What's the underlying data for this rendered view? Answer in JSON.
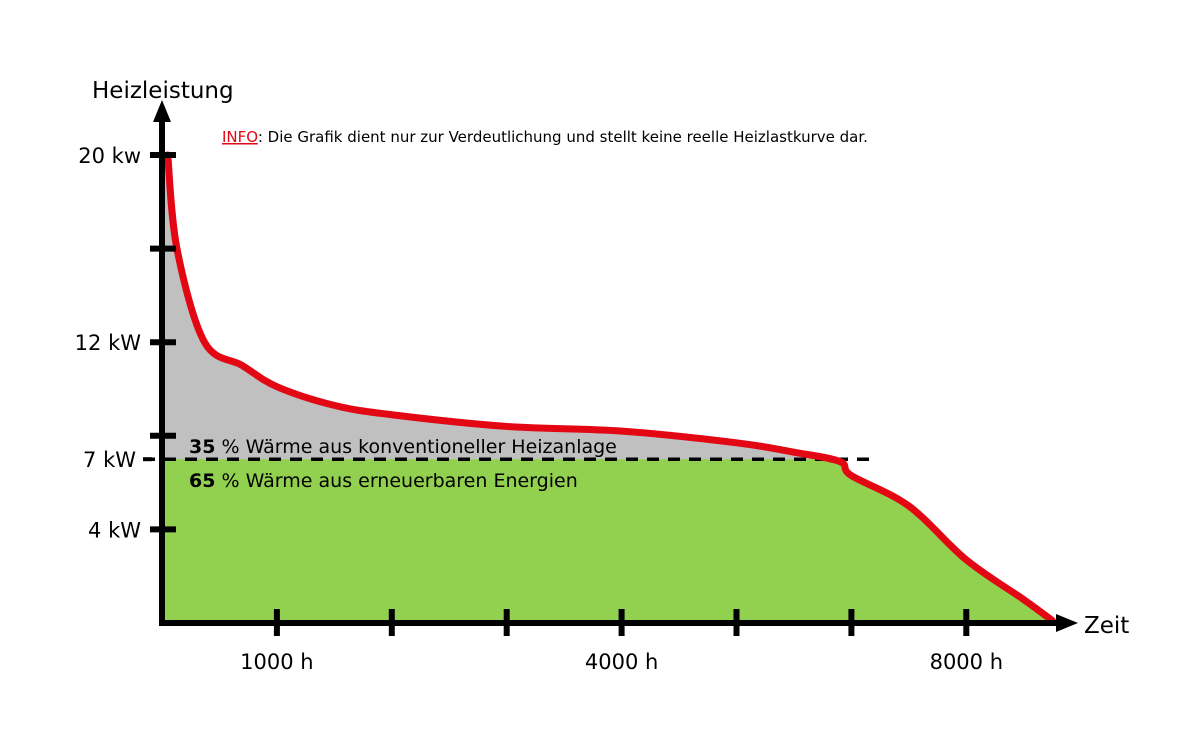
{
  "chart_data": {
    "type": "area",
    "ylabel": "Heizleistung",
    "xlabel": "Zeit",
    "info": {
      "prefix": "INFO",
      "text": ": Die Grafik dient nur zur Verdeutlichung und stellt keine reelle Heizlastkurve dar."
    },
    "y_ticks": [
      {
        "value": 20,
        "label": "20 kw"
      },
      {
        "value": 16,
        "label": ""
      },
      {
        "value": 12,
        "label": "12 kW"
      },
      {
        "value": 8,
        "label": ""
      },
      {
        "value": 7,
        "label": "7 kW"
      },
      {
        "value": 4,
        "label": "4 kW"
      }
    ],
    "x_ticks": [
      {
        "index": 1,
        "label": "1000 h"
      },
      {
        "index": 2,
        "label": ""
      },
      {
        "index": 3,
        "label": ""
      },
      {
        "index": 4,
        "label": "4000 h"
      },
      {
        "index": 5,
        "label": ""
      },
      {
        "index": 6,
        "label": ""
      },
      {
        "index": 7,
        "label": "8000 h"
      }
    ],
    "threshold_kw": 7,
    "series": [
      {
        "name": "Heizlastkurve",
        "x_tick_index": [
          0.05,
          0.13,
          0.37,
          0.7,
          1.0,
          1.5,
          2,
          3,
          4,
          5,
          5.5,
          5.9,
          6,
          6.5,
          7,
          7.5,
          7.75
        ],
        "kw": [
          20,
          16,
          12,
          11,
          10.1,
          9.3,
          8.9,
          8.4,
          8.2,
          7.7,
          7.3,
          6.9,
          6.3,
          5.0,
          2.7,
          1.0,
          0.1
        ]
      }
    ],
    "annotations": [
      {
        "bold": "35",
        "text": " % Wärme aus konventioneller Heizanlage"
      },
      {
        "bold": "65",
        "text": " % Wärme aus erneuerbaren Energien"
      }
    ],
    "colors": {
      "curve": "#e30613",
      "conventional": "#c0c0c0",
      "renewable": "#92d050",
      "axis": "#000000",
      "info": "#e30613"
    }
  }
}
